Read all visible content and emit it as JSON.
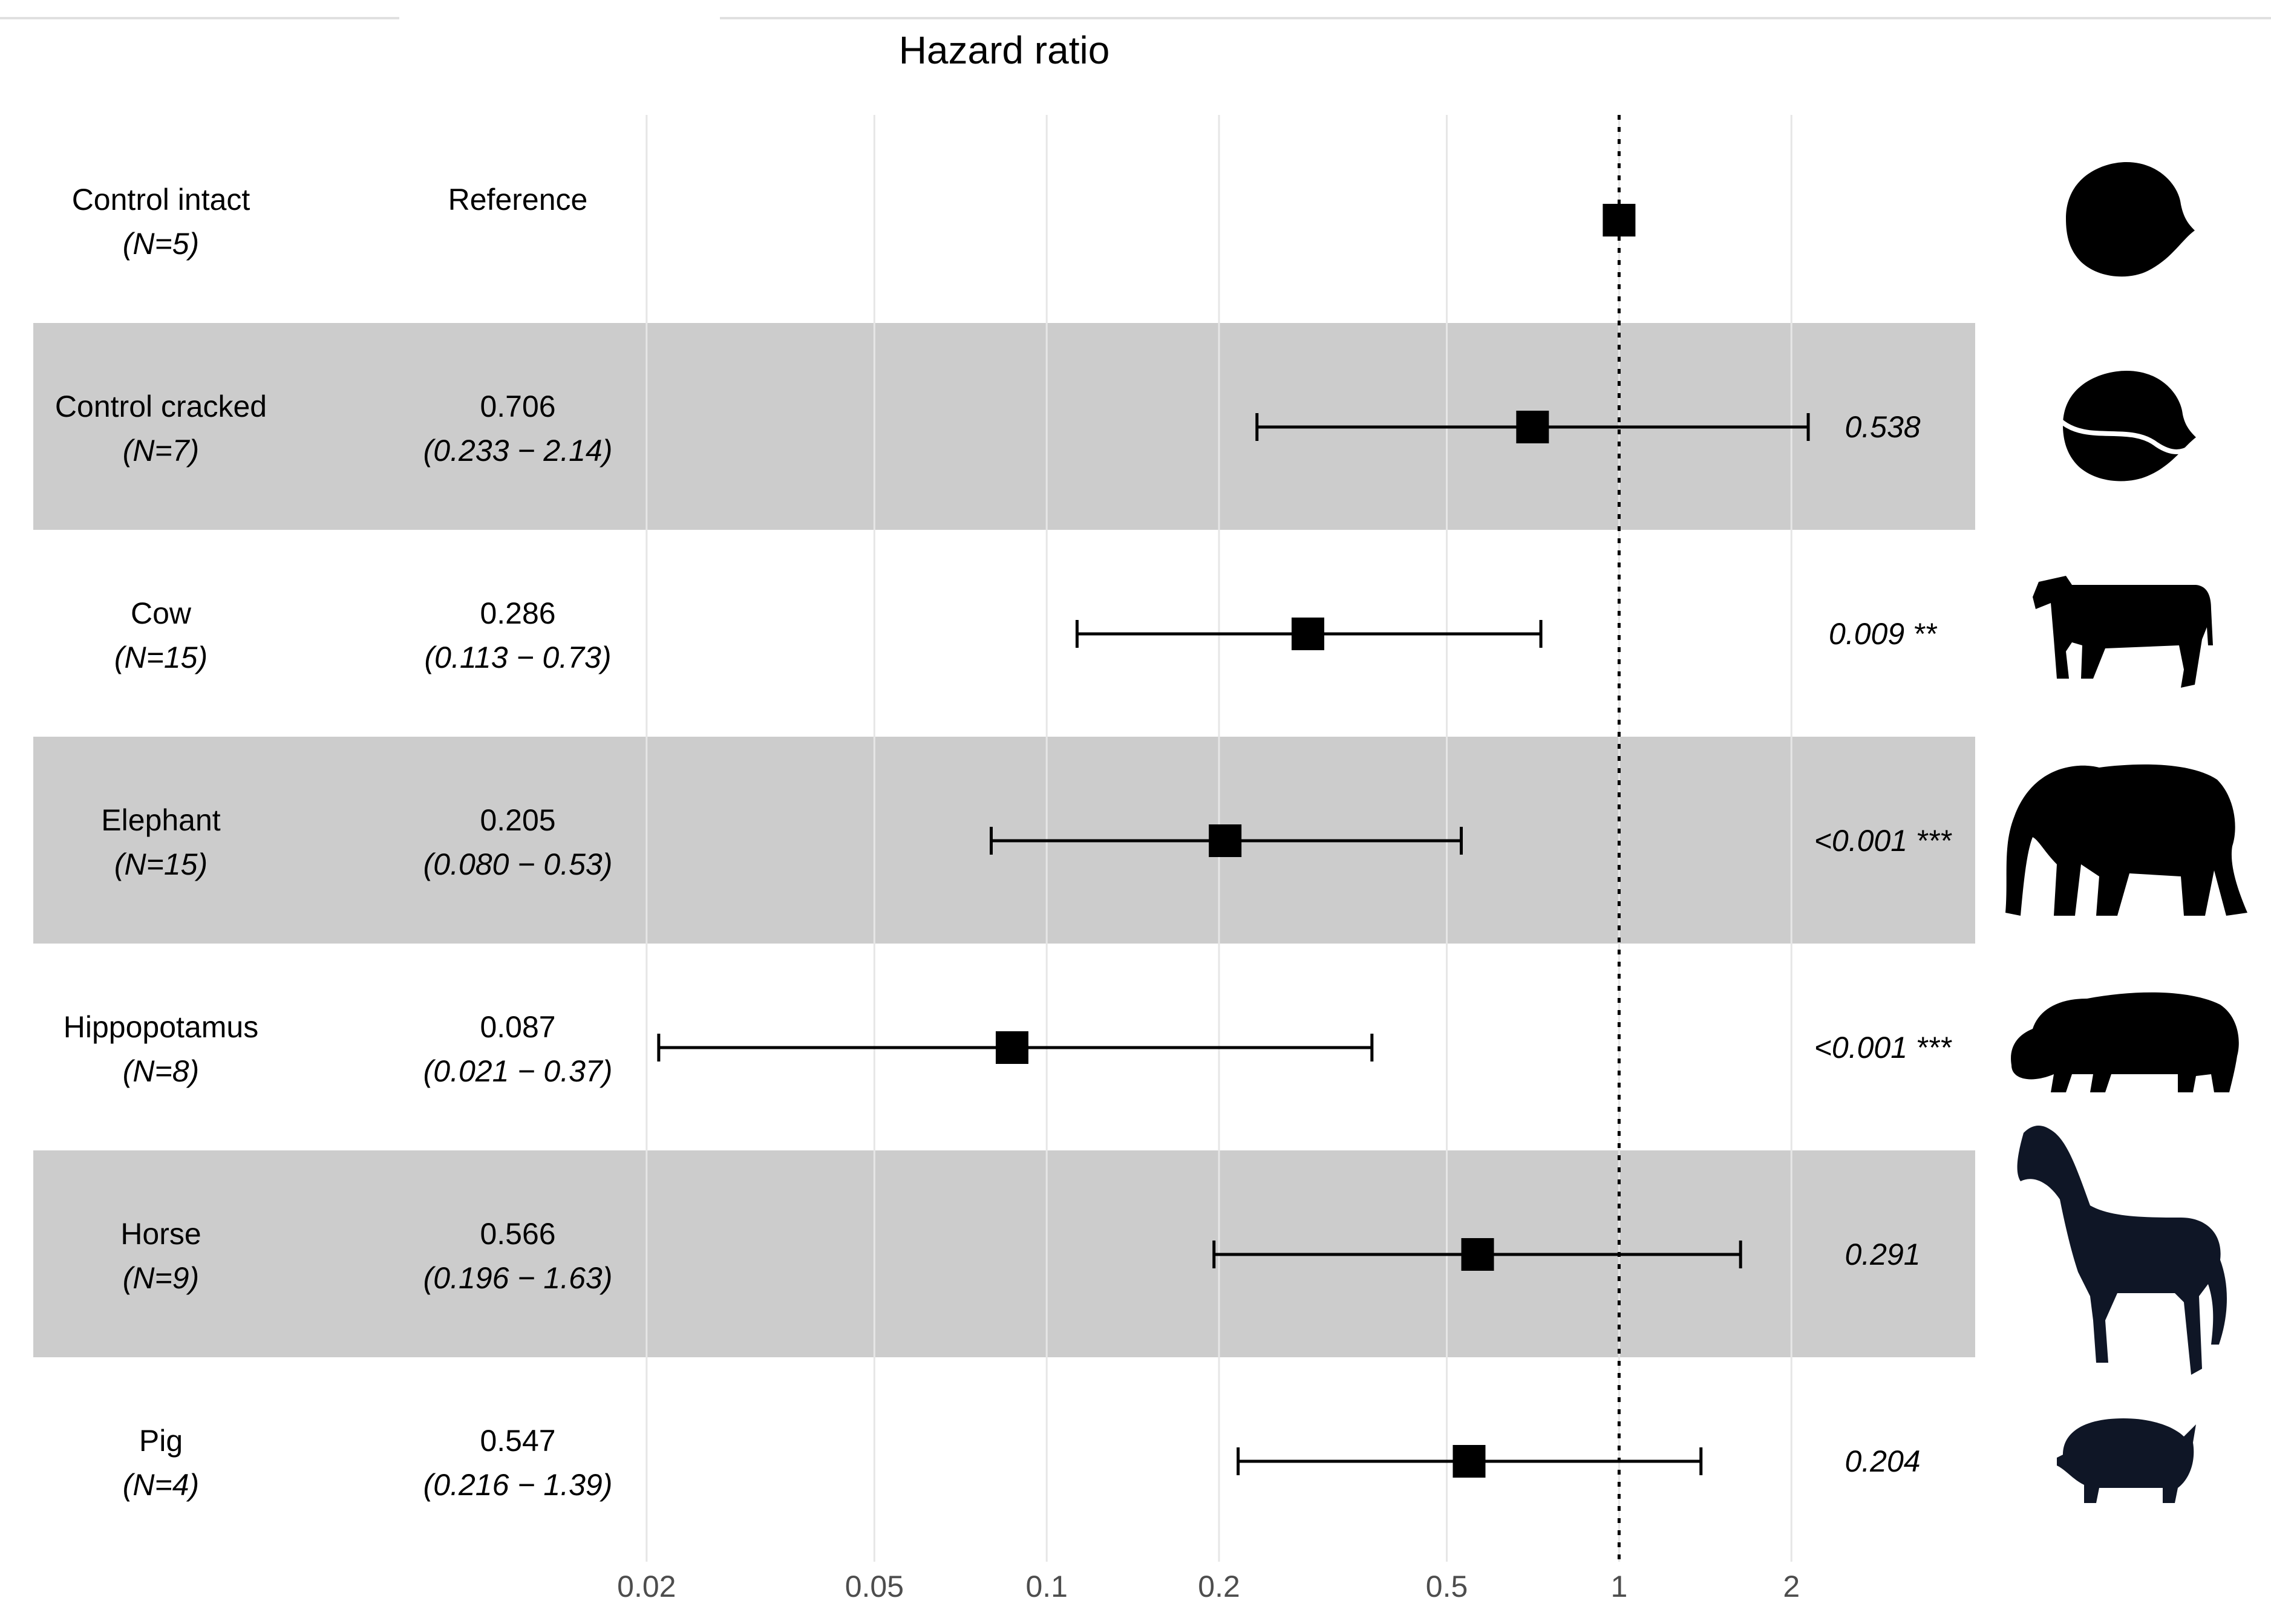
{
  "chart_data": {
    "type": "forest",
    "title": "Hazard ratio",
    "xscale": "log",
    "xlim": [
      0.0195,
      6.0
    ],
    "ticks": [
      {
        "value": 0.02,
        "label": "0.02"
      },
      {
        "value": 0.05,
        "label": "0.05"
      },
      {
        "value": 0.1,
        "label": "0.1"
      },
      {
        "value": 0.2,
        "label": "0.2"
      },
      {
        "value": 0.5,
        "label": "0.5"
      },
      {
        "value": 1,
        "label": "1"
      },
      {
        "value": 2,
        "label": "2"
      }
    ],
    "reference_line": 1,
    "rows": [
      {
        "name": "Control intact",
        "n": "(N=5)",
        "estimate_label": "Reference",
        "ci_label": "",
        "hr": 1.0,
        "lower": null,
        "upper": null,
        "p": "",
        "shaded": false,
        "icon": "intact-seed-icon"
      },
      {
        "name": "Control cracked",
        "n": "(N=7)",
        "estimate_label": "0.706",
        "ci_label": "(0.233 − 2.14)",
        "hr": 0.706,
        "lower": 0.233,
        "upper": 2.14,
        "p": "0.538",
        "shaded": true,
        "icon": "cracked-seed-icon"
      },
      {
        "name": "Cow",
        "n": "(N=15)",
        "estimate_label": "0.286",
        "ci_label": "(0.113 − 0.73)",
        "hr": 0.286,
        "lower": 0.113,
        "upper": 0.73,
        "p": "0.009 **",
        "shaded": false,
        "icon": "cow-icon"
      },
      {
        "name": "Elephant",
        "n": "(N=15)",
        "estimate_label": "0.205",
        "ci_label": "(0.080 − 0.53)",
        "hr": 0.205,
        "lower": 0.08,
        "upper": 0.53,
        "p": "<0.001 ***",
        "shaded": true,
        "icon": "elephant-icon"
      },
      {
        "name": "Hippopotamus",
        "n": "(N=8)",
        "estimate_label": "0.087",
        "ci_label": "(0.021 − 0.37)",
        "hr": 0.087,
        "lower": 0.021,
        "upper": 0.37,
        "p": "<0.001 ***",
        "shaded": false,
        "icon": "hippopotamus-icon"
      },
      {
        "name": "Horse",
        "n": "(N=9)",
        "estimate_label": "0.566",
        "ci_label": "(0.196 − 1.63)",
        "hr": 0.566,
        "lower": 0.196,
        "upper": 1.63,
        "p": "0.291",
        "shaded": true,
        "icon": "horse-icon"
      },
      {
        "name": "Pig",
        "n": "(N=4)",
        "estimate_label": "0.547",
        "ci_label": "(0.216 − 1.39)",
        "hr": 0.547,
        "lower": 0.216,
        "upper": 1.39,
        "p": "0.204",
        "shaded": false,
        "icon": "pig-icon"
      }
    ]
  },
  "colors": {
    "row_shade": "#cccccc",
    "grid": "#e6e6e6",
    "ink": "#000000",
    "horse_pig": "#0f1626"
  }
}
